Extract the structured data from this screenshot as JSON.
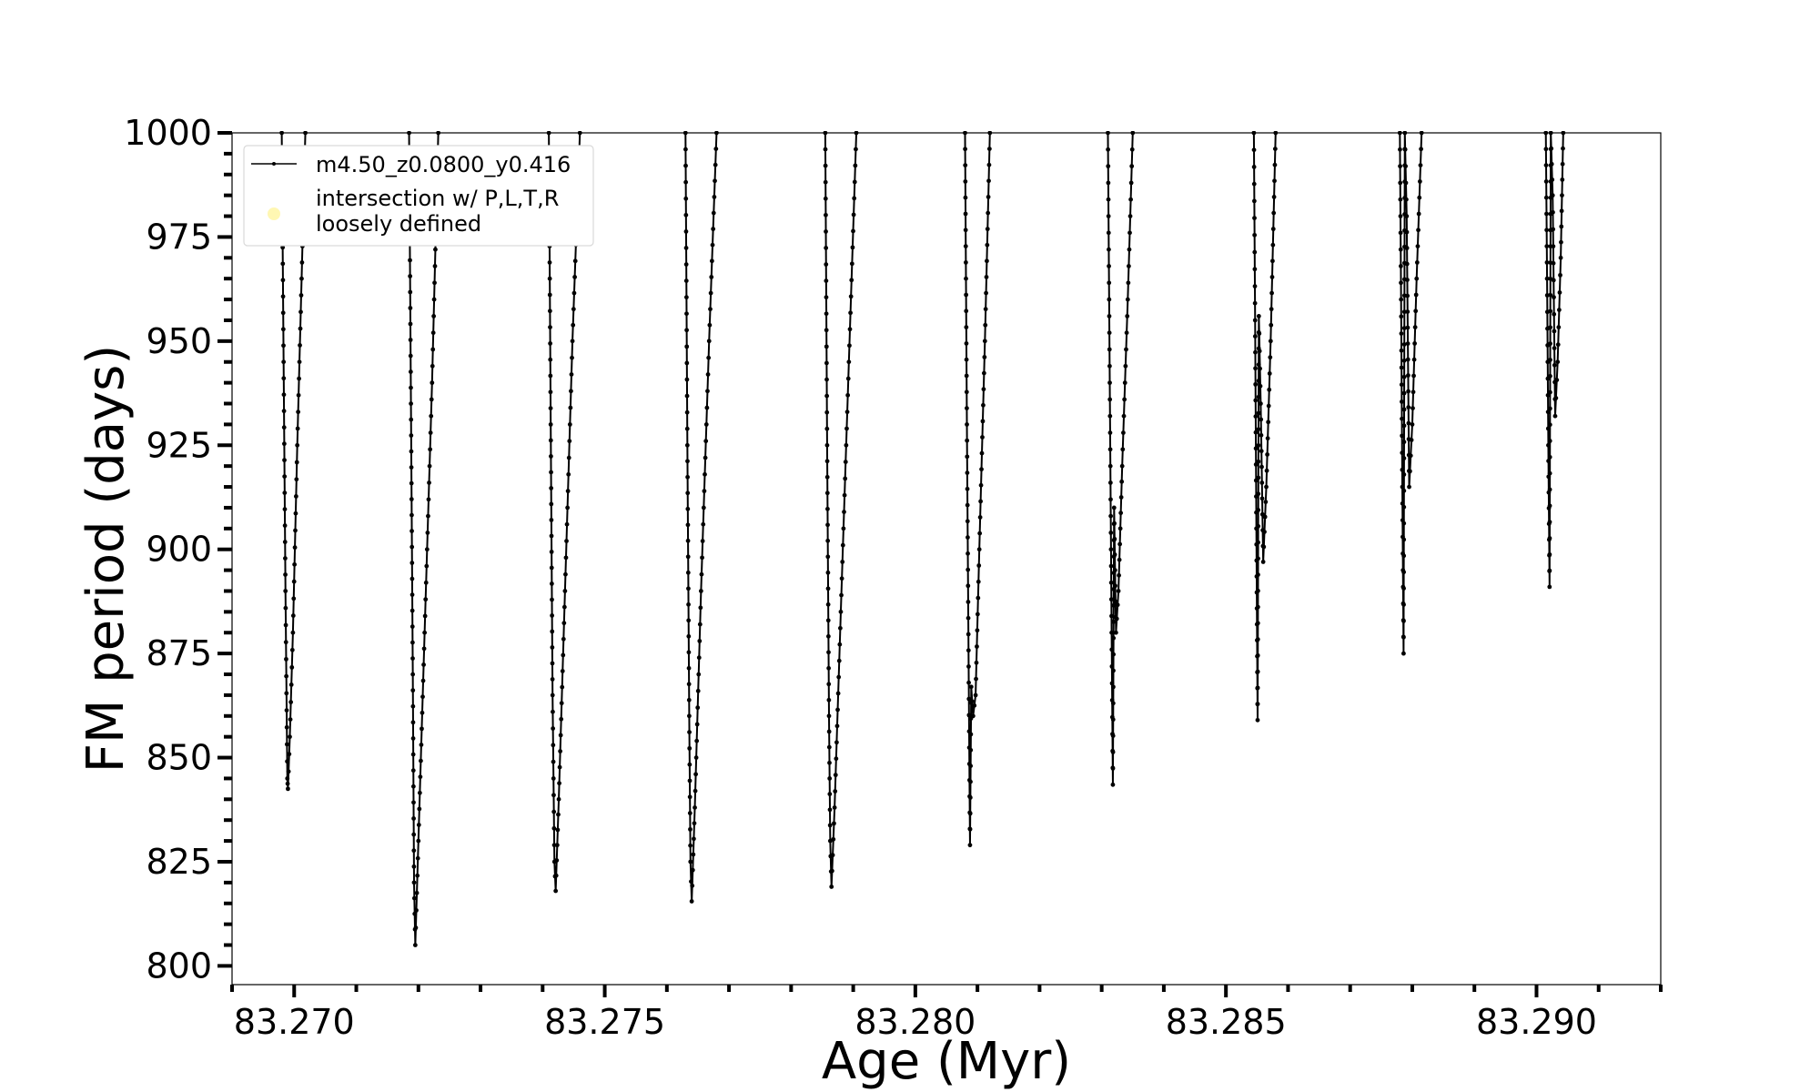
{
  "chart_data": {
    "type": "line",
    "title": "",
    "xlabel": "Age (Myr)",
    "ylabel": "FM period (days)",
    "xlim": [
      83.269,
      83.292
    ],
    "ylim": [
      795.5,
      1000
    ],
    "x_ticks": [
      83.27,
      83.275,
      83.28,
      83.285,
      83.29
    ],
    "x_tick_labels": [
      "83.270",
      "83.275",
      "83.280",
      "83.285",
      "83.290"
    ],
    "y_ticks": [
      800,
      825,
      850,
      875,
      900,
      925,
      950,
      975,
      1000
    ],
    "y_tick_labels": [
      "800",
      "825",
      "850",
      "875",
      "900",
      "925",
      "950",
      "975",
      "1000"
    ],
    "grid": false,
    "legend_placement": "top-left",
    "series": [
      {
        "name": "m4.50_z0.0800_y0.416",
        "color": "#000000",
        "marker": "dot",
        "segments": [
          [
            [
              83.2698,
              1000
            ],
            [
              83.26983,
              945
            ],
            [
              83.26986,
              890
            ],
            [
              83.26989,
              845
            ],
            [
              83.2699,
              842.5
            ],
            [
              83.26993,
              855
            ],
            [
              83.26998,
              880
            ],
            [
              83.27005,
              925
            ],
            [
              83.27012,
              965
            ],
            [
              83.27018,
              1000
            ]
          ],
          [
            [
              83.27185,
              1000
            ],
            [
              83.27188,
              935
            ],
            [
              83.27191,
              870
            ],
            [
              83.27193,
              820
            ],
            [
              83.27195,
              805
            ],
            [
              83.272,
              830
            ],
            [
              83.2721,
              880
            ],
            [
              83.27222,
              940
            ],
            [
              83.27232,
              1000
            ]
          ],
          [
            [
              83.2741,
              1000
            ],
            [
              83.27413,
              930
            ],
            [
              83.27416,
              865
            ],
            [
              83.27419,
              825
            ],
            [
              83.27421,
              818
            ],
            [
              83.27426,
              840
            ],
            [
              83.27436,
              890
            ],
            [
              83.27448,
              950
            ],
            [
              83.2746,
              1000
            ]
          ],
          [
            [
              83.2763,
              1000
            ],
            [
              83.27633,
              925
            ],
            [
              83.27636,
              860
            ],
            [
              83.27638,
              825
            ],
            [
              83.2764,
              815.5
            ],
            [
              83.27645,
              838
            ],
            [
              83.27655,
              890
            ],
            [
              83.27668,
              950
            ],
            [
              83.2768,
              1000
            ]
          ],
          [
            [
              83.27855,
              1000
            ],
            [
              83.27858,
              925
            ],
            [
              83.27861,
              860
            ],
            [
              83.27863,
              830
            ],
            [
              83.27865,
              819
            ],
            [
              83.2787,
              838
            ],
            [
              83.2788,
              885
            ],
            [
              83.27893,
              945
            ],
            [
              83.27905,
              1000
            ]
          ],
          [
            [
              83.2808,
              1000
            ],
            [
              83.28083,
              930
            ],
            [
              83.28086,
              868
            ],
            [
              83.28088,
              829
            ],
            [
              83.2809,
              867
            ],
            [
              83.28093,
              860
            ],
            [
              83.28097,
              865
            ],
            [
              83.28103,
              900
            ],
            [
              83.28112,
              950
            ],
            [
              83.2812,
              1000
            ]
          ],
          [
            [
              83.2831,
              1000
            ],
            [
              83.28313,
              940
            ],
            [
              83.28316,
              880
            ],
            [
              83.28318,
              843.5
            ],
            [
              83.2832,
              910
            ],
            [
              83.28323,
              880
            ],
            [
              83.28327,
              890
            ],
            [
              83.28333,
              920
            ],
            [
              83.28342,
              960
            ],
            [
              83.2835,
              1000
            ]
          ],
          [
            [
              83.28545,
              1000
            ],
            [
              83.28547,
              955
            ],
            [
              83.28549,
              905
            ],
            [
              83.28551,
              859
            ],
            [
              83.28553,
              956
            ],
            [
              83.28556,
              935
            ],
            [
              83.2856,
              897
            ],
            [
              83.28565,
              915
            ],
            [
              83.28572,
              950
            ],
            [
              83.2858,
              1000
            ]
          ],
          [
            [
              83.2878,
              1000
            ],
            [
              83.28782,
              960
            ],
            [
              83.28784,
              915
            ],
            [
              83.28786,
              875
            ],
            [
              83.28788,
              1000
            ],
            [
              83.28791,
              980
            ],
            [
              83.28795,
              915
            ],
            [
              83.288,
              930
            ],
            [
              83.28807,
              965
            ],
            [
              83.28815,
              1000
            ]
          ],
          [
            [
              83.29015,
              1000
            ],
            [
              83.29017,
              965
            ],
            [
              83.29019,
              925
            ],
            [
              83.29021,
              891
            ],
            [
              83.29023,
              1000
            ],
            [
              83.29026,
              985
            ],
            [
              83.2903,
              932
            ],
            [
              83.29034,
              945
            ],
            [
              83.29039,
              970
            ],
            [
              83.29043,
              1000
            ]
          ]
        ]
      },
      {
        "name": "intersection w/ P,L,T,R loosely defined",
        "color": "#fff7b3",
        "marker": "circle",
        "points": []
      }
    ]
  }
}
